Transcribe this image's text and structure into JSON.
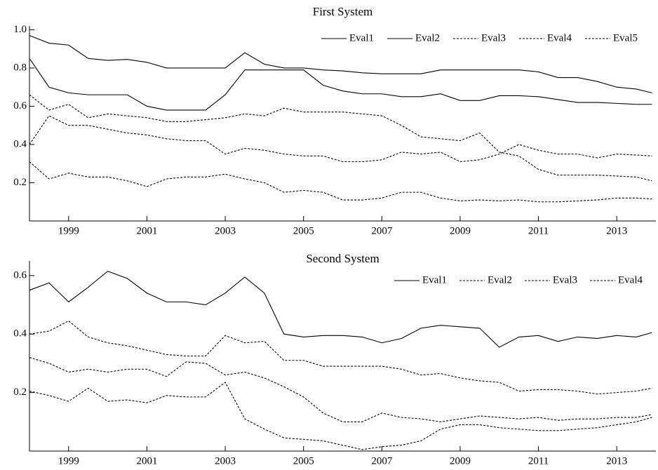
{
  "chart_data": [
    {
      "type": "line",
      "title": "First System",
      "x": [
        1998,
        1998.5,
        1999,
        1999.5,
        2000,
        2000.5,
        2001,
        2001.5,
        2002,
        2002.5,
        2003,
        2003.5,
        2004,
        2004.5,
        2005,
        2005.5,
        2006,
        2006.5,
        2007,
        2007.5,
        2008,
        2008.5,
        2009,
        2009.5,
        2010,
        2010.5,
        2011,
        2011.5,
        2012,
        2012.5,
        2013,
        2013.5,
        2013.9
      ],
      "xlim": [
        1998,
        2014
      ],
      "xticks": [
        1999,
        2001,
        2003,
        2005,
        2007,
        2009,
        2011,
        2013
      ],
      "ylim": [
        0,
        1.02
      ],
      "yticks": [
        0.2,
        0.4,
        0.6,
        0.8,
        {
          "value": 1,
          "label": "1.0"
        }
      ],
      "legend": "top-right",
      "series": [
        {
          "name": "Eval1",
          "color": "#000000",
          "line_style": "solid",
          "values": [
            0.97,
            0.93,
            0.92,
            0.85,
            0.84,
            0.845,
            0.83,
            0.8,
            0.8,
            0.8,
            0.8,
            0.88,
            0.82,
            0.8,
            0.8,
            0.79,
            0.785,
            0.775,
            0.77,
            0.77,
            0.77,
            0.79,
            0.79,
            0.79,
            0.79,
            0.79,
            0.78,
            0.75,
            0.75,
            0.73,
            0.7,
            0.69,
            0.67
          ]
        },
        {
          "name": "Eval2",
          "color": "#000000",
          "line_style": "solid",
          "values": [
            0.85,
            0.7,
            0.67,
            0.66,
            0.66,
            0.66,
            0.6,
            0.58,
            0.58,
            0.58,
            0.66,
            0.79,
            0.79,
            0.79,
            0.79,
            0.71,
            0.68,
            0.665,
            0.665,
            0.65,
            0.65,
            0.665,
            0.63,
            0.63,
            0.655,
            0.655,
            0.65,
            0.635,
            0.62,
            0.62,
            0.615,
            0.61,
            0.61
          ]
        },
        {
          "name": "Eval3",
          "color": "#000000",
          "line_style": "dashed",
          "values": [
            0.66,
            0.58,
            0.61,
            0.54,
            0.56,
            0.55,
            0.54,
            0.52,
            0.52,
            0.53,
            0.54,
            0.56,
            0.55,
            0.59,
            0.57,
            0.57,
            0.57,
            0.56,
            0.55,
            0.5,
            0.44,
            0.43,
            0.42,
            0.46,
            0.36,
            0.34,
            0.27,
            0.24,
            0.24,
            0.24,
            0.235,
            0.23,
            0.21
          ]
        },
        {
          "name": "Eval4",
          "color": "#000000",
          "line_style": "dashed",
          "values": [
            0.4,
            0.55,
            0.5,
            0.5,
            0.48,
            0.46,
            0.45,
            0.43,
            0.42,
            0.42,
            0.35,
            0.38,
            0.37,
            0.35,
            0.34,
            0.34,
            0.31,
            0.31,
            0.32,
            0.36,
            0.35,
            0.36,
            0.31,
            0.32,
            0.35,
            0.4,
            0.37,
            0.35,
            0.35,
            0.33,
            0.35,
            0.345,
            0.34
          ]
        },
        {
          "name": "Eval5",
          "color": "#000000",
          "line_style": "dashed",
          "values": [
            0.31,
            0.22,
            0.25,
            0.23,
            0.23,
            0.21,
            0.18,
            0.22,
            0.23,
            0.23,
            0.245,
            0.22,
            0.2,
            0.15,
            0.16,
            0.15,
            0.11,
            0.11,
            0.12,
            0.15,
            0.15,
            0.12,
            0.105,
            0.11,
            0.105,
            0.11,
            0.1,
            0.1,
            0.105,
            0.11,
            0.12,
            0.12,
            0.115
          ]
        }
      ]
    },
    {
      "type": "line",
      "title": "Second System",
      "x": [
        1998,
        1998.5,
        1999,
        1999.5,
        2000,
        2000.5,
        2001,
        2001.5,
        2002,
        2002.5,
        2003,
        2003.5,
        2004,
        2004.5,
        2005,
        2005.5,
        2006,
        2006.5,
        2007,
        2007.5,
        2008,
        2008.5,
        2009,
        2009.5,
        2010,
        2010.5,
        2011,
        2011.5,
        2012,
        2012.5,
        2013,
        2013.5,
        2013.9
      ],
      "xlim": [
        1998,
        2014
      ],
      "xticks": [
        1999,
        2001,
        2003,
        2005,
        2007,
        2009,
        2011,
        2013
      ],
      "ylim": [
        0,
        0.65
      ],
      "yticks": [
        0.2,
        0.4,
        0.6
      ],
      "legend": "top-right",
      "series": [
        {
          "name": "Eval1",
          "color": "#000000",
          "line_style": "solid",
          "values": [
            0.55,
            0.575,
            0.51,
            0.56,
            0.615,
            0.59,
            0.54,
            0.51,
            0.51,
            0.5,
            0.54,
            0.595,
            0.54,
            0.4,
            0.39,
            0.395,
            0.395,
            0.39,
            0.37,
            0.385,
            0.42,
            0.43,
            0.425,
            0.42,
            0.355,
            0.39,
            0.395,
            0.375,
            0.39,
            0.385,
            0.395,
            0.39,
            0.405
          ]
        },
        {
          "name": "Eval2",
          "color": "#000000",
          "line_style": "dashed",
          "values": [
            0.4,
            0.41,
            0.445,
            0.39,
            0.37,
            0.36,
            0.345,
            0.33,
            0.325,
            0.325,
            0.395,
            0.37,
            0.375,
            0.31,
            0.31,
            0.29,
            0.29,
            0.29,
            0.29,
            0.28,
            0.26,
            0.265,
            0.25,
            0.24,
            0.235,
            0.205,
            0.21,
            0.21,
            0.205,
            0.195,
            0.2,
            0.205,
            0.215
          ]
        },
        {
          "name": "Eval3",
          "color": "#000000",
          "line_style": "dashed",
          "values": [
            0.32,
            0.3,
            0.27,
            0.28,
            0.27,
            0.28,
            0.28,
            0.255,
            0.305,
            0.3,
            0.26,
            0.27,
            0.25,
            0.22,
            0.185,
            0.13,
            0.1,
            0.1,
            0.13,
            0.115,
            0.11,
            0.1,
            0.11,
            0.12,
            0.115,
            0.11,
            0.115,
            0.105,
            0.11,
            0.11,
            0.115,
            0.115,
            0.125
          ]
        },
        {
          "name": "Eval4",
          "color": "#000000",
          "line_style": "dashed",
          "values": [
            0.205,
            0.19,
            0.17,
            0.215,
            0.17,
            0.175,
            0.165,
            0.19,
            0.185,
            0.185,
            0.235,
            0.11,
            0.075,
            0.045,
            0.04,
            0.035,
            0.02,
            0.005,
            0.015,
            0.02,
            0.035,
            0.075,
            0.09,
            0.09,
            0.08,
            0.075,
            0.07,
            0.07,
            0.075,
            0.08,
            0.09,
            0.1,
            0.115
          ]
        }
      ]
    }
  ]
}
